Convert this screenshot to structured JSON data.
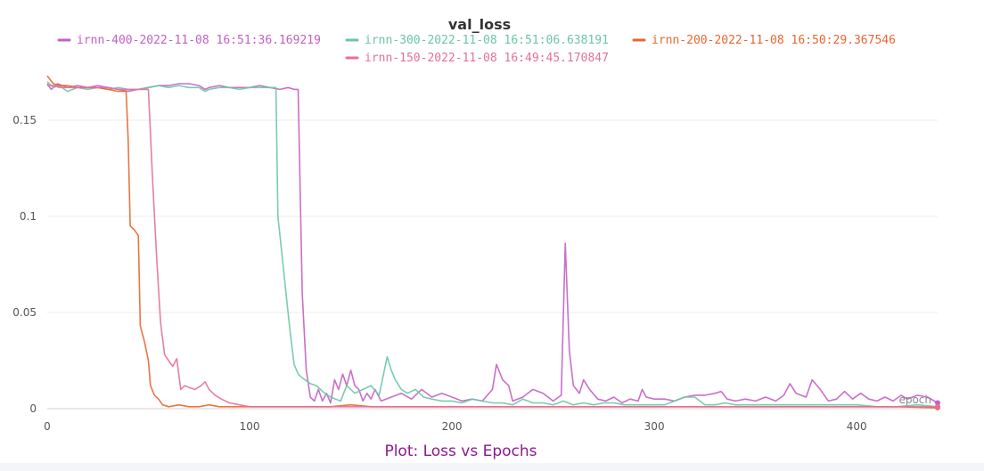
{
  "chart_data": {
    "type": "line",
    "title": "val_loss",
    "xlabel": "epoch",
    "ylabel": "",
    "xlim": [
      0,
      440
    ],
    "ylim": [
      0,
      0.17
    ],
    "x_ticks": [
      0,
      100,
      200,
      300,
      400
    ],
    "y_ticks": [
      0,
      0.05,
      0.1,
      0.15
    ],
    "x_tick_labels": [
      "0",
      "100",
      "200",
      "300",
      "400"
    ],
    "y_tick_labels": [
      "0",
      "0.05",
      "0.1",
      "0.15"
    ],
    "grid": true,
    "legend_position": "top",
    "series": [
      {
        "name": "irnn-400-2022-11-08 16:51:36.169219",
        "color": "#c45fc4",
        "points": [
          [
            0,
            0.169
          ],
          [
            2,
            0.166
          ],
          [
            5,
            0.169
          ],
          [
            10,
            0.167
          ],
          [
            15,
            0.168
          ],
          [
            20,
            0.167
          ],
          [
            25,
            0.168
          ],
          [
            30,
            0.167
          ],
          [
            35,
            0.166
          ],
          [
            40,
            0.165
          ],
          [
            45,
            0.166
          ],
          [
            50,
            0.167
          ],
          [
            55,
            0.168
          ],
          [
            60,
            0.168
          ],
          [
            65,
            0.169
          ],
          [
            70,
            0.169
          ],
          [
            75,
            0.168
          ],
          [
            78,
            0.166
          ],
          [
            80,
            0.167
          ],
          [
            85,
            0.168
          ],
          [
            90,
            0.167
          ],
          [
            95,
            0.167
          ],
          [
            100,
            0.167
          ],
          [
            105,
            0.168
          ],
          [
            110,
            0.167
          ],
          [
            115,
            0.166
          ],
          [
            119,
            0.167
          ],
          [
            122,
            0.166
          ],
          [
            124,
            0.166
          ],
          [
            126,
            0.06
          ],
          [
            128,
            0.02
          ],
          [
            130,
            0.006
          ],
          [
            132,
            0.004
          ],
          [
            134,
            0.01
          ],
          [
            136,
            0.004
          ],
          [
            138,
            0.008
          ],
          [
            140,
            0.003
          ],
          [
            142,
            0.015
          ],
          [
            144,
            0.01
          ],
          [
            146,
            0.018
          ],
          [
            148,
            0.012
          ],
          [
            150,
            0.02
          ],
          [
            152,
            0.012
          ],
          [
            154,
            0.01
          ],
          [
            156,
            0.004
          ],
          [
            158,
            0.008
          ],
          [
            160,
            0.005
          ],
          [
            162,
            0.01
          ],
          [
            165,
            0.004
          ],
          [
            170,
            0.006
          ],
          [
            175,
            0.008
          ],
          [
            180,
            0.005
          ],
          [
            185,
            0.01
          ],
          [
            190,
            0.006
          ],
          [
            195,
            0.008
          ],
          [
            200,
            0.006
          ],
          [
            205,
            0.004
          ],
          [
            210,
            0.005
          ],
          [
            215,
            0.004
          ],
          [
            220,
            0.01
          ],
          [
            222,
            0.023
          ],
          [
            225,
            0.015
          ],
          [
            228,
            0.012
          ],
          [
            230,
            0.004
          ],
          [
            235,
            0.006
          ],
          [
            240,
            0.01
          ],
          [
            245,
            0.008
          ],
          [
            250,
            0.004
          ],
          [
            254,
            0.007
          ],
          [
            256,
            0.086
          ],
          [
            258,
            0.03
          ],
          [
            260,
            0.012
          ],
          [
            263,
            0.008
          ],
          [
            265,
            0.015
          ],
          [
            268,
            0.01
          ],
          [
            272,
            0.005
          ],
          [
            276,
            0.004
          ],
          [
            280,
            0.006
          ],
          [
            284,
            0.003
          ],
          [
            288,
            0.005
          ],
          [
            292,
            0.004
          ],
          [
            294,
            0.01
          ],
          [
            296,
            0.006
          ],
          [
            300,
            0.005
          ],
          [
            305,
            0.005
          ],
          [
            310,
            0.004
          ],
          [
            315,
            0.006
          ],
          [
            320,
            0.007
          ],
          [
            325,
            0.007
          ],
          [
            330,
            0.008
          ],
          [
            333,
            0.009
          ],
          [
            336,
            0.005
          ],
          [
            340,
            0.004
          ],
          [
            345,
            0.005
          ],
          [
            350,
            0.004
          ],
          [
            355,
            0.006
          ],
          [
            360,
            0.004
          ],
          [
            364,
            0.007
          ],
          [
            367,
            0.013
          ],
          [
            370,
            0.008
          ],
          [
            375,
            0.006
          ],
          [
            378,
            0.015
          ],
          [
            382,
            0.01
          ],
          [
            386,
            0.004
          ],
          [
            390,
            0.005
          ],
          [
            394,
            0.009
          ],
          [
            398,
            0.005
          ],
          [
            402,
            0.008
          ],
          [
            406,
            0.005
          ],
          [
            410,
            0.004
          ],
          [
            414,
            0.006
          ],
          [
            418,
            0.004
          ],
          [
            422,
            0.007
          ],
          [
            425,
            0.005
          ],
          [
            430,
            0.007
          ],
          [
            435,
            0.006
          ],
          [
            440,
            0.003
          ]
        ]
      },
      {
        "name": "irnn-300-2022-11-08 16:51:06.638191",
        "color": "#6ac6a4",
        "points": [
          [
            0,
            0.17
          ],
          [
            3,
            0.167
          ],
          [
            6,
            0.168
          ],
          [
            10,
            0.165
          ],
          [
            15,
            0.167
          ],
          [
            20,
            0.166
          ],
          [
            25,
            0.167
          ],
          [
            30,
            0.166
          ],
          [
            35,
            0.167
          ],
          [
            40,
            0.166
          ],
          [
            45,
            0.166
          ],
          [
            50,
            0.167
          ],
          [
            55,
            0.168
          ],
          [
            60,
            0.167
          ],
          [
            65,
            0.168
          ],
          [
            70,
            0.167
          ],
          [
            75,
            0.167
          ],
          [
            78,
            0.165
          ],
          [
            80,
            0.166
          ],
          [
            85,
            0.167
          ],
          [
            90,
            0.167
          ],
          [
            95,
            0.166
          ],
          [
            100,
            0.167
          ],
          [
            105,
            0.167
          ],
          [
            110,
            0.167
          ],
          [
            113,
            0.167
          ],
          [
            114,
            0.1
          ],
          [
            116,
            0.08
          ],
          [
            118,
            0.06
          ],
          [
            120,
            0.04
          ],
          [
            122,
            0.023
          ],
          [
            124,
            0.018
          ],
          [
            126,
            0.016
          ],
          [
            130,
            0.013
          ],
          [
            133,
            0.012
          ],
          [
            136,
            0.009
          ],
          [
            140,
            0.006
          ],
          [
            145,
            0.004
          ],
          [
            148,
            0.012
          ],
          [
            152,
            0.008
          ],
          [
            156,
            0.01
          ],
          [
            160,
            0.012
          ],
          [
            164,
            0.007
          ],
          [
            168,
            0.027
          ],
          [
            170,
            0.02
          ],
          [
            172,
            0.015
          ],
          [
            175,
            0.01
          ],
          [
            178,
            0.008
          ],
          [
            182,
            0.01
          ],
          [
            186,
            0.006
          ],
          [
            190,
            0.005
          ],
          [
            195,
            0.004
          ],
          [
            200,
            0.004
          ],
          [
            205,
            0.003
          ],
          [
            210,
            0.005
          ],
          [
            215,
            0.004
          ],
          [
            220,
            0.003
          ],
          [
            225,
            0.003
          ],
          [
            230,
            0.002
          ],
          [
            235,
            0.005
          ],
          [
            240,
            0.003
          ],
          [
            245,
            0.003
          ],
          [
            250,
            0.002
          ],
          [
            255,
            0.004
          ],
          [
            260,
            0.002
          ],
          [
            265,
            0.003
          ],
          [
            270,
            0.002
          ],
          [
            275,
            0.003
          ],
          [
            280,
            0.003
          ],
          [
            285,
            0.002
          ],
          [
            290,
            0.002
          ],
          [
            295,
            0.002
          ],
          [
            300,
            0.002
          ],
          [
            305,
            0.002
          ],
          [
            310,
            0.004
          ],
          [
            315,
            0.006
          ],
          [
            320,
            0.006
          ],
          [
            325,
            0.002
          ],
          [
            330,
            0.002
          ],
          [
            335,
            0.003
          ],
          [
            340,
            0.002
          ],
          [
            345,
            0.002
          ],
          [
            350,
            0.002
          ],
          [
            360,
            0.002
          ],
          [
            370,
            0.002
          ],
          [
            380,
            0.002
          ],
          [
            390,
            0.002
          ],
          [
            400,
            0.002
          ],
          [
            410,
            0.001
          ],
          [
            420,
            0.001
          ],
          [
            430,
            0.002
          ],
          [
            440,
            0.001
          ]
        ]
      },
      {
        "name": "irnn-200-2022-11-08 16:50:29.367546",
        "color": "#e5672f",
        "points": [
          [
            0,
            0.173
          ],
          [
            3,
            0.169
          ],
          [
            6,
            0.168
          ],
          [
            10,
            0.168
          ],
          [
            15,
            0.167
          ],
          [
            20,
            0.167
          ],
          [
            25,
            0.167
          ],
          [
            30,
            0.166
          ],
          [
            35,
            0.165
          ],
          [
            39,
            0.165
          ],
          [
            40,
            0.14
          ],
          [
            41,
            0.095
          ],
          [
            43,
            0.093
          ],
          [
            45,
            0.09
          ],
          [
            46,
            0.043
          ],
          [
            48,
            0.035
          ],
          [
            50,
            0.025
          ],
          [
            51,
            0.012
          ],
          [
            53,
            0.007
          ],
          [
            55,
            0.005
          ],
          [
            57,
            0.002
          ],
          [
            60,
            0.001
          ],
          [
            65,
            0.002
          ],
          [
            70,
            0.001
          ],
          [
            75,
            0.001
          ],
          [
            80,
            0.002
          ],
          [
            85,
            0.001
          ],
          [
            90,
            0.001
          ],
          [
            100,
            0.001
          ],
          [
            110,
            0.001
          ],
          [
            120,
            0.001
          ],
          [
            130,
            0.001
          ],
          [
            140,
            0.001
          ],
          [
            150,
            0.002
          ],
          [
            160,
            0.001
          ],
          [
            170,
            0.001
          ],
          [
            180,
            0.001
          ],
          [
            190,
            0.001
          ],
          [
            200,
            0.001
          ],
          [
            220,
            0.001
          ],
          [
            240,
            0.001
          ],
          [
            260,
            0.001
          ],
          [
            280,
            0.001
          ],
          [
            300,
            0.001
          ],
          [
            320,
            0.001
          ],
          [
            340,
            0.001
          ],
          [
            360,
            0.001
          ],
          [
            380,
            0.001
          ],
          [
            400,
            0.001
          ],
          [
            420,
            0.001
          ],
          [
            440,
            0.0005
          ]
        ]
      },
      {
        "name": "irnn-150-2022-11-08 16:49:45.170847",
        "color": "#e56f9a",
        "points": [
          [
            0,
            0.168
          ],
          [
            3,
            0.168
          ],
          [
            6,
            0.167
          ],
          [
            10,
            0.167
          ],
          [
            15,
            0.167
          ],
          [
            20,
            0.167
          ],
          [
            25,
            0.167
          ],
          [
            30,
            0.167
          ],
          [
            35,
            0.166
          ],
          [
            40,
            0.166
          ],
          [
            45,
            0.166
          ],
          [
            48,
            0.166
          ],
          [
            50,
            0.166
          ],
          [
            52,
            0.12
          ],
          [
            54,
            0.08
          ],
          [
            56,
            0.045
          ],
          [
            58,
            0.028
          ],
          [
            60,
            0.025
          ],
          [
            62,
            0.022
          ],
          [
            64,
            0.026
          ],
          [
            66,
            0.01
          ],
          [
            68,
            0.012
          ],
          [
            70,
            0.011
          ],
          [
            73,
            0.01
          ],
          [
            76,
            0.012
          ],
          [
            78,
            0.014
          ],
          [
            80,
            0.01
          ],
          [
            83,
            0.007
          ],
          [
            86,
            0.005
          ],
          [
            90,
            0.003
          ],
          [
            95,
            0.002
          ],
          [
            100,
            0.001
          ],
          [
            110,
            0.001
          ],
          [
            120,
            0.001
          ],
          [
            130,
            0.001
          ],
          [
            140,
            0.001
          ],
          [
            150,
            0.001
          ],
          [
            160,
            0.001
          ],
          [
            170,
            0.001
          ],
          [
            180,
            0.001
          ],
          [
            190,
            0.001
          ],
          [
            200,
            0.001
          ],
          [
            220,
            0.001
          ],
          [
            240,
            0.001
          ],
          [
            260,
            0.001
          ],
          [
            280,
            0.001
          ],
          [
            300,
            0.001
          ],
          [
            320,
            0.001
          ],
          [
            340,
            0.001
          ],
          [
            360,
            0.001
          ],
          [
            380,
            0.001
          ],
          [
            400,
            0.001
          ],
          [
            420,
            0.001
          ],
          [
            440,
            0.001
          ]
        ]
      }
    ]
  },
  "caption": "Plot: Loss vs Epochs"
}
